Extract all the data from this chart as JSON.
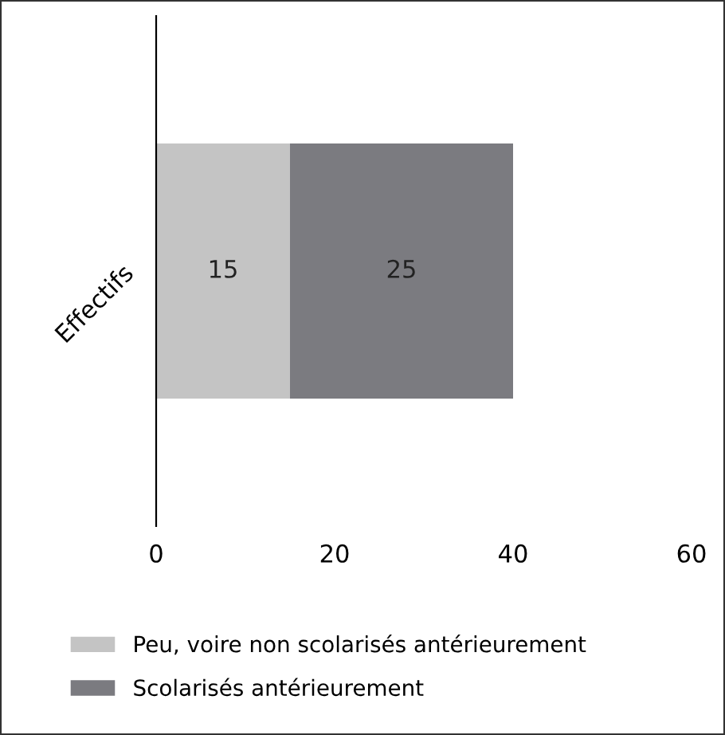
{
  "chart_data": {
    "type": "bar",
    "orientation": "horizontal",
    "stacked": true,
    "categories": [
      "Effectifs"
    ],
    "series": [
      {
        "name": "Peu, voire non scolarisés antérieurement",
        "color": "#c4c4c4",
        "values": [
          15
        ]
      },
      {
        "name": "Scolarisés antérieurement",
        "color": "#7b7b80",
        "values": [
          25
        ]
      }
    ],
    "xlim": [
      0,
      60
    ],
    "xticks": [
      0,
      20,
      40,
      60
    ],
    "data_labels": true,
    "legend": "bottom",
    "grid": false
  }
}
